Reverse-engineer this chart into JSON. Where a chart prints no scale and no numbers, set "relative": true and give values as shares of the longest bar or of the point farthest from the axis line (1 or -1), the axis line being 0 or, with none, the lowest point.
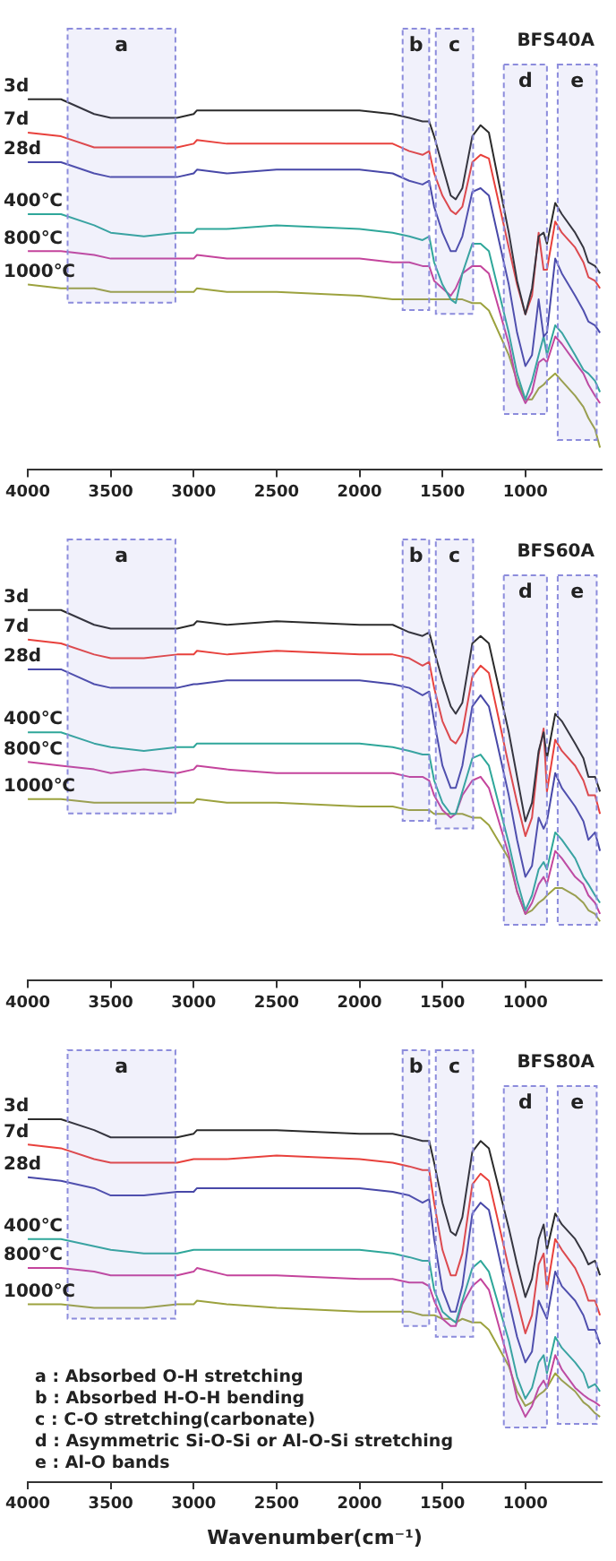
{
  "chart_data": [
    {
      "type": "line",
      "title": "BFS40A",
      "relative": true,
      "tick_labels": "x",
      "legend": false,
      "marker": "none",
      "xlim": [
        4000,
        540
      ],
      "xticks": [
        4000,
        3500,
        3000,
        2500,
        2000,
        1500,
        1000
      ],
      "x": [
        4000,
        3800,
        3600,
        3500,
        3300,
        3100,
        3000,
        2980,
        2800,
        2500,
        2000,
        1800,
        1700,
        1620,
        1580,
        1550,
        1500,
        1450,
        1420,
        1380,
        1320,
        1270,
        1220,
        1100,
        1050,
        1000,
        960,
        920,
        890,
        870,
        820,
        780,
        700,
        650,
        620,
        580,
        550
      ],
      "bands": [
        {
          "axis": "x",
          "from": 3760,
          "to": 3110,
          "label": "a",
          "color": "#8c8cdc"
        },
        {
          "axis": "x",
          "from": 1740,
          "to": 1580,
          "label": "b",
          "color": "#8c8cdc"
        },
        {
          "axis": "x",
          "from": 1540,
          "to": 1315,
          "label": "c",
          "color": "#8c8cdc"
        },
        {
          "axis": "x",
          "from": 1130,
          "to": 870,
          "label": "d",
          "color": "#8c8cdc"
        },
        {
          "axis": "x",
          "from": 805,
          "to": 570,
          "label": "e",
          "color": "#8c8cdc"
        }
      ],
      "series": [
        {
          "name": "3d",
          "color": "#2b2b2b",
          "values": [
            1.0,
            1.0,
            0.96,
            0.95,
            0.95,
            0.95,
            0.96,
            0.97,
            0.97,
            0.97,
            0.97,
            0.96,
            0.95,
            0.94,
            0.94,
            0.9,
            0.82,
            0.74,
            0.73,
            0.76,
            0.9,
            0.93,
            0.91,
            0.64,
            0.51,
            0.42,
            0.49,
            0.63,
            0.64,
            0.61,
            0.72,
            0.69,
            0.64,
            0.6,
            0.56,
            0.55,
            0.53
          ]
        },
        {
          "name": "7d",
          "color": "#e8413c",
          "values": [
            0.91,
            0.9,
            0.87,
            0.87,
            0.87,
            0.87,
            0.88,
            0.89,
            0.88,
            0.88,
            0.88,
            0.88,
            0.86,
            0.85,
            0.86,
            0.8,
            0.74,
            0.7,
            0.69,
            0.71,
            0.83,
            0.85,
            0.84,
            0.6,
            0.5,
            0.42,
            0.47,
            0.64,
            0.54,
            0.54,
            0.67,
            0.64,
            0.6,
            0.56,
            0.52,
            0.51,
            0.49
          ]
        },
        {
          "name": "28d",
          "color": "#4848a8",
          "values": [
            0.83,
            0.83,
            0.8,
            0.79,
            0.79,
            0.79,
            0.8,
            0.81,
            0.8,
            0.81,
            0.81,
            0.8,
            0.78,
            0.77,
            0.78,
            0.71,
            0.64,
            0.59,
            0.59,
            0.63,
            0.75,
            0.76,
            0.74,
            0.5,
            0.37,
            0.28,
            0.31,
            0.46,
            0.36,
            0.37,
            0.57,
            0.53,
            0.47,
            0.43,
            0.4,
            0.39,
            0.37
          ]
        },
        {
          "name": "400℃",
          "color": "#2fa79a",
          "values": [
            0.69,
            0.69,
            0.66,
            0.64,
            0.63,
            0.64,
            0.64,
            0.65,
            0.65,
            0.66,
            0.65,
            0.64,
            0.63,
            0.62,
            0.63,
            0.56,
            0.5,
            0.46,
            0.45,
            0.53,
            0.61,
            0.61,
            0.59,
            0.37,
            0.26,
            0.19,
            0.24,
            0.31,
            0.36,
            0.31,
            0.39,
            0.37,
            0.31,
            0.27,
            0.26,
            0.24,
            0.21
          ]
        },
        {
          "name": "800℃",
          "color": "#c4449c",
          "values": [
            0.59,
            0.59,
            0.58,
            0.57,
            0.57,
            0.57,
            0.57,
            0.58,
            0.57,
            0.57,
            0.57,
            0.56,
            0.56,
            0.55,
            0.55,
            0.51,
            0.49,
            0.47,
            0.49,
            0.53,
            0.55,
            0.55,
            0.53,
            0.34,
            0.23,
            0.18,
            0.21,
            0.29,
            0.3,
            0.29,
            0.36,
            0.34,
            0.29,
            0.26,
            0.23,
            0.2,
            0.18
          ]
        },
        {
          "name": "1000℃",
          "color": "#9ca23e",
          "values": [
            0.5,
            0.49,
            0.49,
            0.48,
            0.48,
            0.48,
            0.48,
            0.49,
            0.48,
            0.48,
            0.47,
            0.46,
            0.46,
            0.46,
            0.46,
            0.46,
            0.46,
            0.46,
            0.46,
            0.46,
            0.45,
            0.45,
            0.43,
            0.31,
            0.24,
            0.19,
            0.19,
            0.22,
            0.23,
            0.24,
            0.26,
            0.24,
            0.2,
            0.17,
            0.14,
            0.11,
            0.06
          ]
        }
      ]
    },
    {
      "type": "line",
      "title": "BFS60A",
      "relative": true,
      "tick_labels": "x",
      "legend": false,
      "marker": "none",
      "xlim": [
        4000,
        540
      ],
      "xticks": [
        4000,
        3500,
        3000,
        2500,
        2000,
        1500,
        1000
      ],
      "x": [
        4000,
        3800,
        3600,
        3500,
        3300,
        3100,
        3000,
        2980,
        2800,
        2500,
        2000,
        1800,
        1700,
        1620,
        1580,
        1550,
        1500,
        1450,
        1420,
        1380,
        1320,
        1270,
        1220,
        1100,
        1050,
        1000,
        960,
        920,
        890,
        870,
        820,
        780,
        700,
        650,
        620,
        580,
        550
      ],
      "bands": [
        {
          "axis": "x",
          "from": 3760,
          "to": 3110,
          "label": "a",
          "color": "#8c8cdc"
        },
        {
          "axis": "x",
          "from": 1740,
          "to": 1580,
          "label": "b",
          "color": "#8c8cdc"
        },
        {
          "axis": "x",
          "from": 1540,
          "to": 1315,
          "label": "c",
          "color": "#8c8cdc"
        },
        {
          "axis": "x",
          "from": 1130,
          "to": 870,
          "label": "d",
          "color": "#8c8cdc"
        },
        {
          "axis": "x",
          "from": 805,
          "to": 570,
          "label": "e",
          "color": "#8c8cdc"
        }
      ],
      "series": [
        {
          "name": "3d",
          "color": "#2b2b2b",
          "values": [
            1.0,
            1.0,
            0.96,
            0.95,
            0.95,
            0.95,
            0.96,
            0.97,
            0.96,
            0.97,
            0.96,
            0.96,
            0.94,
            0.93,
            0.94,
            0.89,
            0.81,
            0.74,
            0.72,
            0.75,
            0.91,
            0.93,
            0.91,
            0.67,
            0.55,
            0.43,
            0.48,
            0.62,
            0.67,
            0.6,
            0.72,
            0.7,
            0.64,
            0.6,
            0.55,
            0.55,
            0.51
          ]
        },
        {
          "name": "7d",
          "color": "#e8413c",
          "values": [
            0.92,
            0.91,
            0.88,
            0.87,
            0.87,
            0.88,
            0.88,
            0.89,
            0.88,
            0.89,
            0.88,
            0.88,
            0.87,
            0.85,
            0.86,
            0.79,
            0.7,
            0.65,
            0.64,
            0.67,
            0.82,
            0.85,
            0.83,
            0.58,
            0.48,
            0.39,
            0.44,
            0.61,
            0.68,
            0.51,
            0.65,
            0.62,
            0.58,
            0.54,
            0.5,
            0.5,
            0.45
          ]
        },
        {
          "name": "28d",
          "color": "#4848a8",
          "values": [
            0.84,
            0.84,
            0.8,
            0.79,
            0.79,
            0.79,
            0.8,
            0.8,
            0.81,
            0.81,
            0.81,
            0.8,
            0.79,
            0.77,
            0.78,
            0.7,
            0.58,
            0.52,
            0.52,
            0.58,
            0.74,
            0.77,
            0.74,
            0.5,
            0.38,
            0.28,
            0.31,
            0.44,
            0.41,
            0.43,
            0.56,
            0.52,
            0.47,
            0.43,
            0.38,
            0.4,
            0.35
          ]
        },
        {
          "name": "400℃",
          "color": "#2fa79a",
          "values": [
            0.67,
            0.67,
            0.64,
            0.63,
            0.62,
            0.63,
            0.63,
            0.64,
            0.64,
            0.64,
            0.64,
            0.63,
            0.62,
            0.61,
            0.61,
            0.54,
            0.48,
            0.45,
            0.45,
            0.51,
            0.6,
            0.61,
            0.58,
            0.37,
            0.27,
            0.19,
            0.23,
            0.3,
            0.32,
            0.3,
            0.4,
            0.38,
            0.33,
            0.28,
            0.26,
            0.23,
            0.21
          ]
        },
        {
          "name": "800℃",
          "color": "#c4449c",
          "values": [
            0.59,
            0.58,
            0.57,
            0.56,
            0.57,
            0.56,
            0.57,
            0.58,
            0.57,
            0.56,
            0.56,
            0.56,
            0.55,
            0.55,
            0.54,
            0.5,
            0.46,
            0.44,
            0.45,
            0.5,
            0.54,
            0.55,
            0.52,
            0.34,
            0.24,
            0.18,
            0.21,
            0.26,
            0.28,
            0.26,
            0.35,
            0.33,
            0.28,
            0.26,
            0.23,
            0.21,
            0.18
          ]
        },
        {
          "name": "1000℃",
          "color": "#9ca23e",
          "values": [
            0.49,
            0.49,
            0.48,
            0.48,
            0.48,
            0.48,
            0.48,
            0.49,
            0.48,
            0.48,
            0.47,
            0.47,
            0.46,
            0.46,
            0.46,
            0.45,
            0.45,
            0.45,
            0.45,
            0.45,
            0.44,
            0.44,
            0.42,
            0.33,
            0.24,
            0.18,
            0.19,
            0.21,
            0.22,
            0.23,
            0.25,
            0.25,
            0.23,
            0.21,
            0.19,
            0.18,
            0.16
          ]
        }
      ]
    },
    {
      "type": "line",
      "title": "BFS80A",
      "xlabel": "Wavenumber(cm⁻¹)",
      "relative": true,
      "tick_labels": "x",
      "legend": false,
      "marker": "none",
      "xlim": [
        4000,
        540
      ],
      "xticks": [
        4000,
        3500,
        3000,
        2500,
        2000,
        1500,
        1000
      ],
      "x": [
        4000,
        3800,
        3600,
        3500,
        3300,
        3100,
        3000,
        2980,
        2800,
        2500,
        2000,
        1800,
        1700,
        1620,
        1580,
        1550,
        1500,
        1450,
        1420,
        1380,
        1320,
        1270,
        1220,
        1100,
        1050,
        1000,
        960,
        920,
        890,
        870,
        820,
        780,
        700,
        650,
        620,
        580,
        550
      ],
      "bands": [
        {
          "axis": "x",
          "from": 3760,
          "to": 3110,
          "label": "a",
          "color": "#8c8cdc"
        },
        {
          "axis": "x",
          "from": 1740,
          "to": 1580,
          "label": "b",
          "color": "#8c8cdc"
        },
        {
          "axis": "x",
          "from": 1540,
          "to": 1315,
          "label": "c",
          "color": "#8c8cdc"
        },
        {
          "axis": "x",
          "from": 1130,
          "to": 870,
          "label": "d",
          "color": "#8c8cdc"
        },
        {
          "axis": "x",
          "from": 805,
          "to": 570,
          "label": "e",
          "color": "#8c8cdc"
        }
      ],
      "annotations": [
        "a : Absorbed O-H stretching",
        "b : Absorbed H-O-H bending",
        "c : C-O stretching(carbonate)",
        "d : Asymmetric Si-O-Si or Al-O-Si stretching",
        "e : Al-O bands"
      ],
      "series": [
        {
          "name": "3d",
          "color": "#2b2b2b",
          "values": [
            1.0,
            1.0,
            0.97,
            0.95,
            0.95,
            0.95,
            0.96,
            0.97,
            0.97,
            0.97,
            0.96,
            0.96,
            0.95,
            0.94,
            0.94,
            0.88,
            0.77,
            0.69,
            0.68,
            0.73,
            0.91,
            0.94,
            0.92,
            0.7,
            0.6,
            0.51,
            0.56,
            0.67,
            0.71,
            0.64,
            0.74,
            0.71,
            0.67,
            0.63,
            0.6,
            0.61,
            0.57
          ]
        },
        {
          "name": "7d",
          "color": "#e8413c",
          "values": [
            0.93,
            0.92,
            0.89,
            0.88,
            0.88,
            0.88,
            0.89,
            0.89,
            0.89,
            0.9,
            0.89,
            0.88,
            0.87,
            0.86,
            0.86,
            0.77,
            0.64,
            0.57,
            0.57,
            0.63,
            0.82,
            0.85,
            0.83,
            0.59,
            0.5,
            0.41,
            0.46,
            0.6,
            0.63,
            0.53,
            0.67,
            0.64,
            0.59,
            0.54,
            0.5,
            0.5,
            0.46
          ]
        },
        {
          "name": "28d",
          "color": "#4848a8",
          "values": [
            0.84,
            0.83,
            0.81,
            0.79,
            0.79,
            0.8,
            0.8,
            0.81,
            0.81,
            0.81,
            0.81,
            0.8,
            0.79,
            0.77,
            0.78,
            0.67,
            0.53,
            0.47,
            0.47,
            0.54,
            0.74,
            0.77,
            0.75,
            0.5,
            0.4,
            0.33,
            0.36,
            0.5,
            0.47,
            0.45,
            0.58,
            0.54,
            0.5,
            0.46,
            0.42,
            0.42,
            0.38
          ]
        },
        {
          "name": "400℃",
          "color": "#2fa79a",
          "values": [
            0.67,
            0.67,
            0.65,
            0.64,
            0.63,
            0.63,
            0.64,
            0.64,
            0.64,
            0.64,
            0.64,
            0.63,
            0.62,
            0.61,
            0.61,
            0.53,
            0.47,
            0.45,
            0.44,
            0.5,
            0.59,
            0.61,
            0.58,
            0.39,
            0.29,
            0.23,
            0.26,
            0.33,
            0.35,
            0.3,
            0.4,
            0.37,
            0.33,
            0.3,
            0.26,
            0.27,
            0.25
          ]
        },
        {
          "name": "800℃",
          "color": "#c4449c",
          "values": [
            0.59,
            0.59,
            0.58,
            0.57,
            0.57,
            0.57,
            0.58,
            0.59,
            0.57,
            0.57,
            0.56,
            0.56,
            0.55,
            0.55,
            0.54,
            0.5,
            0.45,
            0.43,
            0.43,
            0.49,
            0.54,
            0.56,
            0.53,
            0.33,
            0.23,
            0.18,
            0.21,
            0.26,
            0.28,
            0.26,
            0.35,
            0.31,
            0.26,
            0.24,
            0.23,
            0.22,
            0.21
          ]
        },
        {
          "name": "1000℃",
          "color": "#9ca23e",
          "values": [
            0.49,
            0.49,
            0.48,
            0.48,
            0.48,
            0.49,
            0.49,
            0.5,
            0.49,
            0.48,
            0.47,
            0.47,
            0.47,
            0.46,
            0.46,
            0.46,
            0.45,
            0.45,
            0.44,
            0.45,
            0.44,
            0.44,
            0.42,
            0.32,
            0.25,
            0.21,
            0.22,
            0.24,
            0.25,
            0.26,
            0.3,
            0.28,
            0.25,
            0.22,
            0.21,
            0.19,
            0.18
          ]
        }
      ]
    }
  ]
}
